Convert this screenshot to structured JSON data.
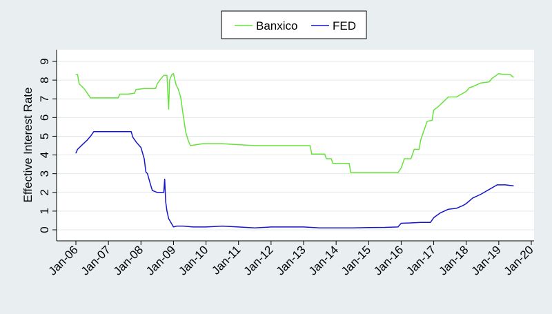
{
  "chart_data": {
    "type": "line",
    "ylabel": "Effective Interest Rate",
    "xlabel": "",
    "ylim": [
      0,
      9
    ],
    "yticks": [
      0,
      1,
      2,
      3,
      4,
      5,
      6,
      7,
      8,
      9
    ],
    "xlim": [
      2006,
      2020
    ],
    "xticks": [
      {
        "x": 2006,
        "label": "Jan-06"
      },
      {
        "x": 2007,
        "label": "Jan-07"
      },
      {
        "x": 2008,
        "label": "Jan-08"
      },
      {
        "x": 2009,
        "label": "Jan-09"
      },
      {
        "x": 2010,
        "label": "Jan-10"
      },
      {
        "x": 2011,
        "label": "Jan-11"
      },
      {
        "x": 2012,
        "label": "Jan-12"
      },
      {
        "x": 2013,
        "label": "Jan-13"
      },
      {
        "x": 2014,
        "label": "Jan-14"
      },
      {
        "x": 2015,
        "label": "Jan-15"
      },
      {
        "x": 2016,
        "label": "Jan-16"
      },
      {
        "x": 2017,
        "label": "Jan-17"
      },
      {
        "x": 2018,
        "label": "Jan-18"
      },
      {
        "x": 2019,
        "label": "Jan-19"
      },
      {
        "x": 2020,
        "label": "Jan-20"
      }
    ],
    "grid": true,
    "legend_position": "top-center",
    "series": [
      {
        "name": "Banxico",
        "color": "#66e23a",
        "points": [
          [
            2006.0,
            8.3
          ],
          [
            2006.05,
            8.3
          ],
          [
            2006.1,
            7.8
          ],
          [
            2006.25,
            7.55
          ],
          [
            2006.35,
            7.3
          ],
          [
            2006.45,
            7.05
          ],
          [
            2006.7,
            7.05
          ],
          [
            2006.95,
            7.05
          ],
          [
            2007.15,
            7.05
          ],
          [
            2007.3,
            7.05
          ],
          [
            2007.35,
            7.25
          ],
          [
            2007.6,
            7.25
          ],
          [
            2007.8,
            7.3
          ],
          [
            2007.85,
            7.5
          ],
          [
            2008.1,
            7.55
          ],
          [
            2008.3,
            7.55
          ],
          [
            2008.45,
            7.55
          ],
          [
            2008.5,
            7.8
          ],
          [
            2008.6,
            8.05
          ],
          [
            2008.7,
            8.25
          ],
          [
            2008.8,
            8.25
          ],
          [
            2008.85,
            6.45
          ],
          [
            2008.88,
            8.0
          ],
          [
            2008.95,
            8.3
          ],
          [
            2009.0,
            8.35
          ],
          [
            2009.08,
            7.75
          ],
          [
            2009.15,
            7.5
          ],
          [
            2009.22,
            7.1
          ],
          [
            2009.3,
            6.1
          ],
          [
            2009.38,
            5.2
          ],
          [
            2009.45,
            4.8
          ],
          [
            2009.52,
            4.5
          ],
          [
            2009.7,
            4.55
          ],
          [
            2009.9,
            4.6
          ],
          [
            2010.0,
            4.6
          ],
          [
            2010.5,
            4.6
          ],
          [
            2011.0,
            4.55
          ],
          [
            2011.5,
            4.5
          ],
          [
            2012.0,
            4.5
          ],
          [
            2012.5,
            4.5
          ],
          [
            2013.0,
            4.5
          ],
          [
            2013.2,
            4.5
          ],
          [
            2013.25,
            4.05
          ],
          [
            2013.65,
            4.05
          ],
          [
            2013.7,
            3.8
          ],
          [
            2013.85,
            3.8
          ],
          [
            2013.9,
            3.55
          ],
          [
            2014.4,
            3.55
          ],
          [
            2014.45,
            3.05
          ],
          [
            2015.0,
            3.05
          ],
          [
            2015.5,
            3.05
          ],
          [
            2015.9,
            3.05
          ],
          [
            2016.0,
            3.3
          ],
          [
            2016.1,
            3.8
          ],
          [
            2016.3,
            3.8
          ],
          [
            2016.4,
            4.3
          ],
          [
            2016.55,
            4.3
          ],
          [
            2016.6,
            4.8
          ],
          [
            2016.8,
            5.8
          ],
          [
            2016.95,
            5.85
          ],
          [
            2017.0,
            6.4
          ],
          [
            2017.15,
            6.6
          ],
          [
            2017.3,
            6.85
          ],
          [
            2017.45,
            7.1
          ],
          [
            2017.7,
            7.1
          ],
          [
            2017.9,
            7.3
          ],
          [
            2018.0,
            7.4
          ],
          [
            2018.1,
            7.6
          ],
          [
            2018.2,
            7.65
          ],
          [
            2018.45,
            7.85
          ],
          [
            2018.7,
            7.9
          ],
          [
            2018.8,
            8.1
          ],
          [
            2019.0,
            8.35
          ],
          [
            2019.15,
            8.3
          ],
          [
            2019.35,
            8.3
          ],
          [
            2019.45,
            8.15
          ]
        ]
      },
      {
        "name": "FED",
        "color": "#1616c8",
        "points": [
          [
            2006.0,
            4.1
          ],
          [
            2006.05,
            4.3
          ],
          [
            2006.2,
            4.55
          ],
          [
            2006.35,
            4.8
          ],
          [
            2006.45,
            5.0
          ],
          [
            2006.55,
            5.25
          ],
          [
            2006.8,
            5.25
          ],
          [
            2007.0,
            5.25
          ],
          [
            2007.3,
            5.25
          ],
          [
            2007.55,
            5.25
          ],
          [
            2007.7,
            5.25
          ],
          [
            2007.75,
            4.95
          ],
          [
            2007.85,
            4.7
          ],
          [
            2008.0,
            4.4
          ],
          [
            2008.1,
            3.8
          ],
          [
            2008.15,
            3.1
          ],
          [
            2008.2,
            3.0
          ],
          [
            2008.28,
            2.5
          ],
          [
            2008.35,
            2.1
          ],
          [
            2008.5,
            2.0
          ],
          [
            2008.7,
            2.0
          ],
          [
            2008.73,
            2.7
          ],
          [
            2008.76,
            1.5
          ],
          [
            2008.8,
            1.0
          ],
          [
            2008.85,
            0.6
          ],
          [
            2008.95,
            0.3
          ],
          [
            2009.0,
            0.15
          ],
          [
            2009.1,
            0.2
          ],
          [
            2009.3,
            0.2
          ],
          [
            2009.6,
            0.15
          ],
          [
            2010.0,
            0.15
          ],
          [
            2010.5,
            0.2
          ],
          [
            2011.0,
            0.15
          ],
          [
            2011.5,
            0.1
          ],
          [
            2012.0,
            0.15
          ],
          [
            2012.5,
            0.15
          ],
          [
            2013.0,
            0.15
          ],
          [
            2013.5,
            0.1
          ],
          [
            2014.0,
            0.1
          ],
          [
            2014.5,
            0.1
          ],
          [
            2015.0,
            0.12
          ],
          [
            2015.5,
            0.13
          ],
          [
            2015.9,
            0.15
          ],
          [
            2016.0,
            0.35
          ],
          [
            2016.3,
            0.37
          ],
          [
            2016.6,
            0.4
          ],
          [
            2016.9,
            0.4
          ],
          [
            2017.0,
            0.65
          ],
          [
            2017.2,
            0.9
          ],
          [
            2017.45,
            1.1
          ],
          [
            2017.7,
            1.15
          ],
          [
            2017.9,
            1.3
          ],
          [
            2018.0,
            1.4
          ],
          [
            2018.2,
            1.7
          ],
          [
            2018.45,
            1.9
          ],
          [
            2018.7,
            2.15
          ],
          [
            2018.95,
            2.4
          ],
          [
            2019.2,
            2.4
          ],
          [
            2019.45,
            2.35
          ]
        ]
      }
    ]
  }
}
